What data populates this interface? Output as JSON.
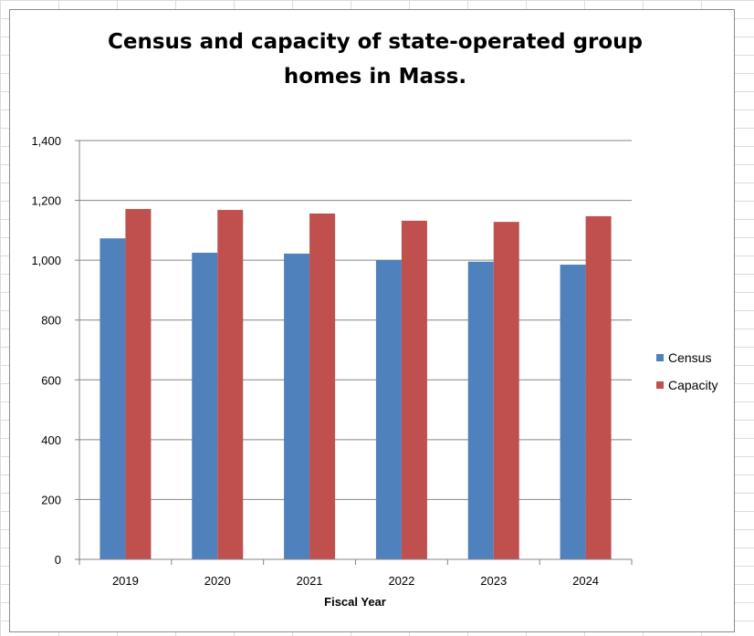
{
  "chart_data": {
    "type": "bar",
    "title": "Census and capacity of state-operated group homes in Mass.",
    "title_lines": [
      "Census and capacity of state-operated group",
      "homes in Mass."
    ],
    "xlabel": "Fiscal Year",
    "ylabel": "",
    "categories": [
      "2019",
      "2020",
      "2021",
      "2022",
      "2023",
      "2024"
    ],
    "series": [
      {
        "name": "Census",
        "color": "#4f81bd",
        "values": [
          1073,
          1025,
          1022,
          1000,
          995,
          985
        ]
      },
      {
        "name": "Capacity",
        "color": "#c0504d",
        "values": [
          1171,
          1168,
          1156,
          1132,
          1128,
          1147
        ]
      }
    ],
    "ylim": [
      0,
      1400
    ],
    "yticks": [
      0,
      200,
      400,
      600,
      800,
      1000,
      1200,
      1400
    ],
    "ytick_labels": [
      "0",
      "200",
      "400",
      "600",
      "800",
      "1,000",
      "1,200",
      "1,400"
    ],
    "grid": true,
    "legend_position": "right"
  }
}
